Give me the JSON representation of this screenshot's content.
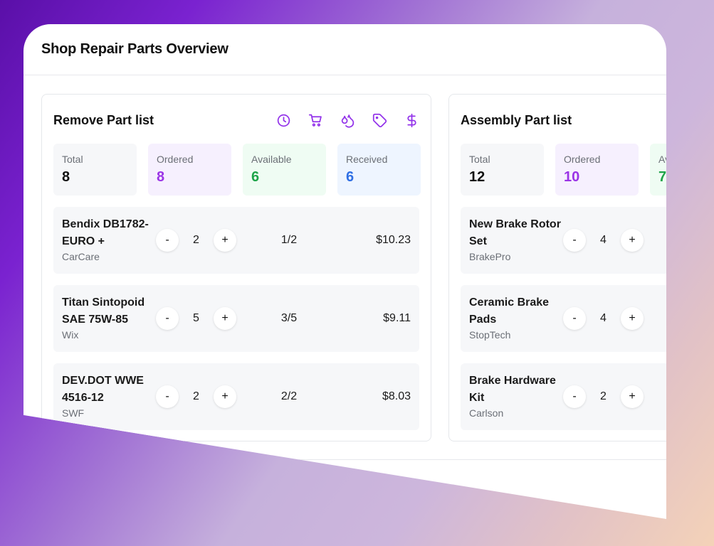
{
  "page_title": "Shop Repair Parts Overview",
  "colors": {
    "accent": "#9333ea",
    "ordered": "#9b34e6",
    "available": "#1ea449",
    "received": "#2f6fe4"
  },
  "icons": [
    "clock-icon",
    "cart-icon",
    "droplets-icon",
    "tag-icon",
    "dollar-icon"
  ],
  "remove_panel": {
    "title": "Remove Part list",
    "stats": [
      {
        "label": "Total",
        "value": "8"
      },
      {
        "label": "Ordered",
        "value": "8"
      },
      {
        "label": "Available",
        "value": "6"
      },
      {
        "label": "Received",
        "value": "6"
      }
    ],
    "rows": [
      {
        "name": "Bendix DB1782-EURO +",
        "brand": "CarCare",
        "qty": "2",
        "fraction": "1/2",
        "price": "$10.23"
      },
      {
        "name": "Titan Sintopoid SAE 75W-85",
        "brand": "Wix",
        "qty": "5",
        "fraction": "3/5",
        "price": "$9.11"
      },
      {
        "name": "DEV.DOT WWE 4516-12",
        "brand": "SWF",
        "qty": "2",
        "fraction": "2/2",
        "price": "$8.03"
      }
    ]
  },
  "assembly_panel": {
    "title": "Assembly Part list",
    "stats": [
      {
        "label": "Total",
        "value": "12"
      },
      {
        "label": "Ordered",
        "value": "10"
      },
      {
        "label": "Av",
        "value": "7"
      }
    ],
    "rows": [
      {
        "name": "New Brake Rotor Set",
        "brand": "BrakePro",
        "qty": "4"
      },
      {
        "name": "Ceramic Brake Pads",
        "brand": "StopTech",
        "qty": "4"
      },
      {
        "name": "Brake Hardware Kit",
        "brand": "Carlson",
        "qty": "2"
      }
    ]
  },
  "stepper": {
    "minus": "-",
    "plus": "+"
  }
}
